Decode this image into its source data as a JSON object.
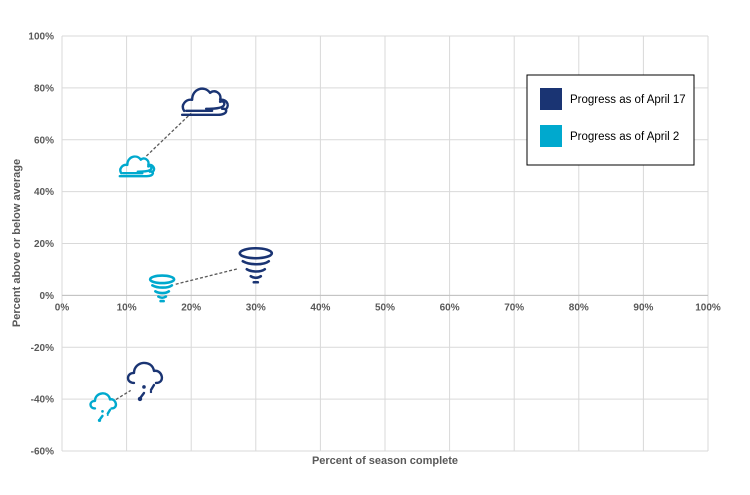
{
  "chart_data": {
    "type": "scatter",
    "xlabel": "Percent of season complete",
    "ylabel": "Percent above or below average",
    "xlim": [
      0,
      100
    ],
    "ylim": [
      -60,
      100
    ],
    "x_ticks": [
      "0%",
      "10%",
      "20%",
      "30%",
      "40%",
      "50%",
      "60%",
      "70%",
      "80%",
      "90%",
      "100%"
    ],
    "y_ticks": [
      "100%",
      "80%",
      "60%",
      "40%",
      "20%",
      "0%",
      "-20%",
      "-40%",
      "-60%"
    ],
    "grid": true,
    "legend_position": "top-right",
    "series": [
      {
        "name": "Progress as of April 17",
        "color": "#1a3473",
        "points": [
          {
            "icon": "wind-icon",
            "x": 22,
            "y": 75
          },
          {
            "icon": "tornado-icon",
            "x": 30,
            "y": 12
          },
          {
            "icon": "hail-icon",
            "x": 13,
            "y": -33
          }
        ]
      },
      {
        "name": "Progress as of April 2",
        "color": "#00a9ce",
        "points": [
          {
            "icon": "wind-icon",
            "x": 11.5,
            "y": 50
          },
          {
            "icon": "tornado-icon",
            "x": 15.5,
            "y": 3
          },
          {
            "icon": "hail-icon",
            "x": 6.5,
            "y": -43
          }
        ]
      }
    ],
    "connector_color": "#595959"
  }
}
